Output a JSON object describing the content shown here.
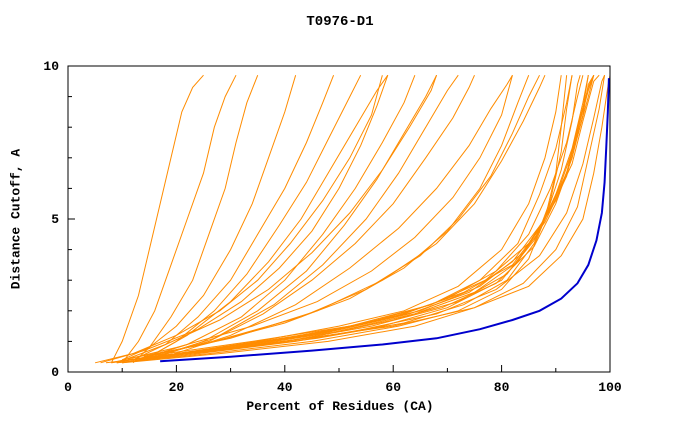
{
  "page": {
    "background": "#ffffff"
  },
  "chart_data": {
    "type": "line",
    "title": "T0976-D1",
    "xlabel": "Percent of Residues (CA)",
    "ylabel": "Distance Cutoff, A",
    "xlim": [
      0,
      100
    ],
    "ylim": [
      0,
      10
    ],
    "xticks": [
      0,
      20,
      40,
      60,
      80,
      100
    ],
    "yticks": [
      0,
      5,
      10
    ],
    "xticks_minor": [
      10,
      30,
      50,
      70,
      90
    ],
    "yticks_minor": [
      1,
      2,
      3,
      4,
      6,
      7,
      8,
      9
    ],
    "grid": false,
    "legend": "none",
    "colors": {
      "model": "#ff8c00",
      "best_model": "#0000cd",
      "frame": "#000000"
    },
    "model_curves": [
      [
        [
          8,
          0.3
        ],
        [
          10,
          1
        ],
        [
          13,
          2.5
        ],
        [
          15,
          4
        ],
        [
          17,
          5.5
        ],
        [
          19,
          7
        ],
        [
          21,
          8.5
        ],
        [
          23,
          9.3
        ],
        [
          25,
          9.7
        ]
      ],
      [
        [
          10,
          0.3
        ],
        [
          13,
          1
        ],
        [
          16,
          2
        ],
        [
          19,
          3.5
        ],
        [
          22,
          5
        ],
        [
          25,
          6.5
        ],
        [
          27,
          8
        ],
        [
          29,
          9
        ],
        [
          31,
          9.7
        ]
      ],
      [
        [
          12,
          0.3
        ],
        [
          15,
          0.8
        ],
        [
          19,
          1.8
        ],
        [
          23,
          3
        ],
        [
          26,
          4.5
        ],
        [
          29,
          6
        ],
        [
          31,
          7.5
        ],
        [
          33,
          8.8
        ],
        [
          35,
          9.7
        ]
      ],
      [
        [
          10,
          0.4
        ],
        [
          15,
          0.8
        ],
        [
          20,
          1.5
        ],
        [
          25,
          2.5
        ],
        [
          30,
          4
        ],
        [
          34,
          5.5
        ],
        [
          37,
          7
        ],
        [
          40,
          8.5
        ],
        [
          42,
          9.7
        ]
      ],
      [
        [
          12,
          0.4
        ],
        [
          18,
          0.9
        ],
        [
          24,
          1.8
        ],
        [
          30,
          3
        ],
        [
          35,
          4.5
        ],
        [
          40,
          6
        ],
        [
          44,
          7.5
        ],
        [
          47,
          8.8
        ],
        [
          49,
          9.7
        ]
      ],
      [
        [
          14,
          0.4
        ],
        [
          20,
          1
        ],
        [
          27,
          2
        ],
        [
          33,
          3.2
        ],
        [
          39,
          4.8
        ],
        [
          44,
          6.2
        ],
        [
          48,
          7.6
        ],
        [
          52,
          9
        ],
        [
          54,
          9.7
        ]
      ],
      [
        [
          15,
          0.5
        ],
        [
          22,
          1.2
        ],
        [
          30,
          2.3
        ],
        [
          37,
          3.6
        ],
        [
          43,
          5
        ],
        [
          48,
          6.5
        ],
        [
          53,
          8
        ],
        [
          57,
          9.2
        ],
        [
          59,
          9.7
        ]
      ],
      [
        [
          13,
          0.4
        ],
        [
          22,
          0.9
        ],
        [
          32,
          1.8
        ],
        [
          40,
          3
        ],
        [
          47,
          4.5
        ],
        [
          53,
          6
        ],
        [
          58,
          7.5
        ],
        [
          62,
          8.8
        ],
        [
          64,
          9.7
        ]
      ],
      [
        [
          15,
          0.4
        ],
        [
          25,
          1
        ],
        [
          35,
          2
        ],
        [
          44,
          3.3
        ],
        [
          51,
          4.8
        ],
        [
          57,
          6.3
        ],
        [
          62,
          7.8
        ],
        [
          66,
          9
        ],
        [
          68,
          9.7
        ]
      ],
      [
        [
          16,
          0.5
        ],
        [
          27,
          1.1
        ],
        [
          38,
          2.2
        ],
        [
          47,
          3.5
        ],
        [
          55,
          5
        ],
        [
          61,
          6.5
        ],
        [
          66,
          8
        ],
        [
          70,
          9.2
        ],
        [
          72,
          9.7
        ]
      ],
      [
        [
          8,
          0.3
        ],
        [
          20,
          0.6
        ],
        [
          35,
          1
        ],
        [
          50,
          1.5
        ],
        [
          62,
          2
        ],
        [
          72,
          2.8
        ],
        [
          80,
          4
        ],
        [
          85,
          5.5
        ],
        [
          88,
          7
        ],
        [
          90,
          8.5
        ],
        [
          91,
          9.7
        ]
      ],
      [
        [
          10,
          0.3
        ],
        [
          25,
          0.7
        ],
        [
          40,
          1.1
        ],
        [
          55,
          1.6
        ],
        [
          67,
          2.2
        ],
        [
          76,
          3
        ],
        [
          83,
          4.2
        ],
        [
          87,
          5.8
        ],
        [
          90,
          7.3
        ],
        [
          92,
          8.8
        ],
        [
          93,
          9.7
        ]
      ],
      [
        [
          12,
          0.4
        ],
        [
          28,
          0.8
        ],
        [
          45,
          1.2
        ],
        [
          60,
          1.8
        ],
        [
          70,
          2.4
        ],
        [
          79,
          3.3
        ],
        [
          85,
          4.5
        ],
        [
          89,
          6
        ],
        [
          92,
          7.5
        ],
        [
          94,
          9
        ],
        [
          95,
          9.7
        ]
      ],
      [
        [
          9,
          0.3
        ],
        [
          24,
          0.6
        ],
        [
          42,
          1
        ],
        [
          58,
          1.5
        ],
        [
          70,
          2.1
        ],
        [
          80,
          3
        ],
        [
          86,
          4.3
        ],
        [
          90,
          5.8
        ],
        [
          93,
          7.3
        ],
        [
          95,
          8.8
        ],
        [
          96,
          9.7
        ]
      ],
      [
        [
          11,
          0.4
        ],
        [
          30,
          0.8
        ],
        [
          48,
          1.3
        ],
        [
          63,
          1.9
        ],
        [
          74,
          2.6
        ],
        [
          82,
          3.6
        ],
        [
          88,
          5
        ],
        [
          92,
          6.5
        ],
        [
          94,
          8
        ],
        [
          96,
          9.3
        ],
        [
          97,
          9.7
        ]
      ],
      [
        [
          13,
          0.4
        ],
        [
          32,
          0.9
        ],
        [
          50,
          1.4
        ],
        [
          65,
          2
        ],
        [
          76,
          2.8
        ],
        [
          84,
          3.9
        ],
        [
          89,
          5.3
        ],
        [
          93,
          6.8
        ],
        [
          95,
          8.2
        ],
        [
          97,
          9.5
        ],
        [
          98,
          9.7
        ]
      ],
      [
        [
          10,
          0.3
        ],
        [
          26,
          0.7
        ],
        [
          44,
          1.1
        ],
        [
          60,
          1.7
        ],
        [
          72,
          2.3
        ],
        [
          81,
          3.2
        ],
        [
          87,
          4.6
        ],
        [
          91,
          6.2
        ],
        [
          94,
          7.7
        ],
        [
          96,
          9
        ],
        [
          97,
          9.7
        ]
      ],
      [
        [
          14,
          0.5
        ],
        [
          34,
          1
        ],
        [
          52,
          1.5
        ],
        [
          67,
          2.2
        ],
        [
          77,
          3
        ],
        [
          85,
          4.2
        ],
        [
          90,
          5.6
        ],
        [
          93,
          7
        ],
        [
          95,
          8.4
        ],
        [
          96,
          9.4
        ],
        [
          97,
          9.7
        ]
      ],
      [
        [
          7,
          0.3
        ],
        [
          22,
          0.6
        ],
        [
          40,
          1
        ],
        [
          56,
          1.5
        ],
        [
          69,
          2.1
        ],
        [
          79,
          2.9
        ],
        [
          86,
          4.1
        ],
        [
          90,
          5.5
        ],
        [
          93,
          7
        ],
        [
          95,
          8.6
        ],
        [
          96,
          9.7
        ]
      ],
      [
        [
          12,
          0.4
        ],
        [
          30,
          0.8
        ],
        [
          47,
          1.3
        ],
        [
          62,
          1.9
        ],
        [
          73,
          2.6
        ],
        [
          82,
          3.5
        ],
        [
          88,
          4.9
        ],
        [
          92,
          6.4
        ],
        [
          94,
          7.9
        ],
        [
          96,
          9.2
        ],
        [
          97,
          9.7
        ]
      ],
      [
        [
          9,
          0.3
        ],
        [
          26,
          0.6
        ],
        [
          45,
          1
        ],
        [
          61,
          1.5
        ],
        [
          72,
          2
        ],
        [
          80,
          2.7
        ],
        [
          85,
          3.7
        ],
        [
          88,
          5
        ],
        [
          90,
          6.5
        ],
        [
          91,
          8
        ],
        [
          92,
          9.7
        ]
      ],
      [
        [
          11,
          0.4
        ],
        [
          28,
          0.7
        ],
        [
          46,
          1.1
        ],
        [
          62,
          1.6
        ],
        [
          73,
          2.2
        ],
        [
          81,
          3
        ],
        [
          86,
          4.2
        ],
        [
          89,
          5.6
        ],
        [
          91,
          7.2
        ],
        [
          92,
          8.6
        ],
        [
          93,
          9.7
        ]
      ],
      [
        [
          13,
          0.4
        ],
        [
          31,
          0.8
        ],
        [
          49,
          1.3
        ],
        [
          64,
          1.9
        ],
        [
          75,
          2.6
        ],
        [
          83,
          3.6
        ],
        [
          88,
          5
        ],
        [
          91,
          6.6
        ],
        [
          93,
          8.2
        ],
        [
          94,
          9.4
        ],
        [
          94.5,
          9.7
        ]
      ],
      [
        [
          10,
          0.3
        ],
        [
          28,
          0.6
        ],
        [
          48,
          1
        ],
        [
          64,
          1.5
        ],
        [
          75,
          2.1
        ],
        [
          84,
          2.9
        ],
        [
          90,
          4
        ],
        [
          94,
          5.4
        ],
        [
          96,
          7
        ],
        [
          98,
          8.6
        ],
        [
          99,
          9.7
        ]
      ],
      [
        [
          12,
          0.4
        ],
        [
          32,
          0.8
        ],
        [
          52,
          1.3
        ],
        [
          68,
          1.9
        ],
        [
          79,
          2.7
        ],
        [
          87,
          3.8
        ],
        [
          92,
          5.2
        ],
        [
          95,
          6.8
        ],
        [
          97,
          8.3
        ],
        [
          98.5,
          9.5
        ],
        [
          99,
          9.7
        ]
      ],
      [
        [
          15,
          0.5
        ],
        [
          40,
          1
        ],
        [
          60,
          1.5
        ],
        [
          75,
          2.1
        ],
        [
          85,
          2.8
        ],
        [
          91,
          3.8
        ],
        [
          95,
          5
        ],
        [
          97,
          6.5
        ],
        [
          98.5,
          8
        ],
        [
          99.5,
          9.2
        ],
        [
          100,
          9.7
        ]
      ],
      [
        [
          10,
          0.4
        ],
        [
          25,
          0.9
        ],
        [
          40,
          1.6
        ],
        [
          52,
          2.4
        ],
        [
          62,
          3.4
        ],
        [
          70,
          4.6
        ],
        [
          76,
          6
        ],
        [
          80,
          7.4
        ],
        [
          83,
          8.8
        ],
        [
          85,
          9.7
        ]
      ],
      [
        [
          12,
          0.4
        ],
        [
          27,
          1
        ],
        [
          43,
          1.8
        ],
        [
          55,
          2.7
        ],
        [
          65,
          3.8
        ],
        [
          72,
          5
        ],
        [
          78,
          6.4
        ],
        [
          82,
          7.8
        ],
        [
          85,
          9
        ],
        [
          87,
          9.7
        ]
      ],
      [
        [
          14,
          0.5
        ],
        [
          30,
          1.1
        ],
        [
          46,
          2
        ],
        [
          58,
          3
        ],
        [
          68,
          4.2
        ],
        [
          75,
          5.5
        ],
        [
          80,
          6.9
        ],
        [
          84,
          8.2
        ],
        [
          87,
          9.3
        ],
        [
          88,
          9.7
        ]
      ],
      [
        [
          8,
          0.3
        ],
        [
          20,
          0.8
        ],
        [
          34,
          1.5
        ],
        [
          46,
          2.3
        ],
        [
          56,
          3.3
        ],
        [
          64,
          4.4
        ],
        [
          71,
          5.7
        ],
        [
          76,
          7
        ],
        [
          80,
          8.4
        ],
        [
          82,
          9.7
        ]
      ],
      [
        [
          6,
          0.3
        ],
        [
          14,
          0.7
        ],
        [
          24,
          1.4
        ],
        [
          32,
          2.3
        ],
        [
          39,
          3.4
        ],
        [
          45,
          4.6
        ],
        [
          50,
          6
        ],
        [
          54,
          7.4
        ],
        [
          57,
          8.7
        ],
        [
          59,
          9.7
        ]
      ],
      [
        [
          16,
          0.5
        ],
        [
          26,
          1
        ],
        [
          36,
          1.9
        ],
        [
          45,
          3
        ],
        [
          53,
          4.2
        ],
        [
          60,
          5.5
        ],
        [
          66,
          7
        ],
        [
          71,
          8.3
        ],
        [
          74,
          9.3
        ],
        [
          75,
          9.7
        ]
      ],
      [
        [
          18,
          0.5
        ],
        [
          30,
          1.2
        ],
        [
          42,
          2.2
        ],
        [
          52,
          3.4
        ],
        [
          61,
          4.7
        ],
        [
          68,
          6
        ],
        [
          74,
          7.4
        ],
        [
          78,
          8.6
        ],
        [
          81,
          9.4
        ],
        [
          82,
          9.7
        ]
      ],
      [
        [
          5,
          0.3
        ],
        [
          12,
          0.6
        ],
        [
          20,
          1.2
        ],
        [
          28,
          2
        ],
        [
          35,
          3
        ],
        [
          41,
          4.2
        ],
        [
          47,
          5.6
        ],
        [
          52,
          7
        ],
        [
          56,
          8.4
        ],
        [
          58,
          9.7
        ]
      ],
      [
        [
          9,
          0.3
        ],
        [
          18,
          0.9
        ],
        [
          28,
          1.7
        ],
        [
          37,
          2.7
        ],
        [
          45,
          3.9
        ],
        [
          52,
          5.2
        ],
        [
          58,
          6.6
        ],
        [
          63,
          8
        ],
        [
          67,
          9.2
        ],
        [
          68,
          9.7
        ]
      ]
    ],
    "best_curve": [
      [
        17,
        0.35
      ],
      [
        30,
        0.5
      ],
      [
        45,
        0.7
      ],
      [
        58,
        0.9
      ],
      [
        68,
        1.1
      ],
      [
        76,
        1.4
      ],
      [
        82,
        1.7
      ],
      [
        87,
        2
      ],
      [
        91,
        2.4
      ],
      [
        94,
        2.9
      ],
      [
        96,
        3.5
      ],
      [
        97.5,
        4.3
      ],
      [
        98.5,
        5.2
      ],
      [
        99,
        6.2
      ],
      [
        99.3,
        7.3
      ],
      [
        99.6,
        8.5
      ],
      [
        99.8,
        9.6
      ]
    ]
  }
}
